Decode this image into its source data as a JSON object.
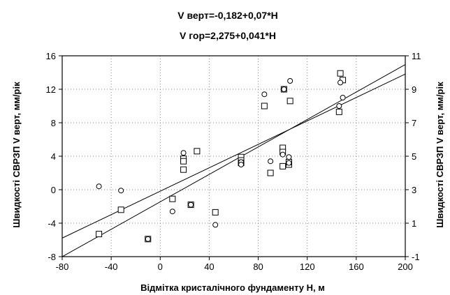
{
  "chart_data": {
    "type": "scatter",
    "title_lines": [
      "V верт=-0,182+0,07*H",
      "V гор=2,275+0,041*H"
    ],
    "xlabel": "Відмітка кристалічного фундаменту Н, м",
    "ylabel_left": "Швидкості СВРЗП V верт, мм/рік",
    "ylabel_right": "Швидкості СВРЗП V верт, мм/рік",
    "xlim": [
      -80,
      200
    ],
    "ylim_left": [
      -8,
      16
    ],
    "ylim_right": [
      -1,
      11
    ],
    "x_ticks": [
      -80,
      -40,
      0,
      40,
      80,
      120,
      160,
      200
    ],
    "y_left_ticks": [
      -8,
      -4,
      0,
      4,
      8,
      12,
      16
    ],
    "y_right_ticks": [
      -1,
      1,
      3,
      5,
      7,
      9,
      11
    ],
    "grid": true,
    "series": [
      {
        "marker": "square",
        "axis": "left",
        "points": [
          [
            -50,
            -5.3
          ],
          [
            -32,
            -2.4
          ],
          [
            -10,
            -5.9
          ],
          [
            10,
            -1.1
          ],
          [
            19,
            3.7
          ],
          [
            19,
            2.4
          ],
          [
            19,
            3.4
          ],
          [
            25,
            -1.8
          ],
          [
            30,
            4.6
          ],
          [
            45,
            -2.7
          ],
          [
            66,
            3.9
          ],
          [
            66,
            3.5
          ],
          [
            66,
            3.2
          ],
          [
            85,
            10.0
          ],
          [
            90,
            2.0
          ],
          [
            100,
            5.0
          ],
          [
            100,
            4.5
          ],
          [
            100,
            2.8
          ],
          [
            101,
            12.0
          ],
          [
            105,
            3.0
          ],
          [
            105,
            3.3
          ],
          [
            106,
            10.6
          ],
          [
            146,
            9.3
          ],
          [
            147,
            13.9
          ],
          [
            149,
            13.1
          ]
        ]
      },
      {
        "marker": "circle",
        "axis": "right",
        "points": [
          [
            -50,
            3.2
          ],
          [
            -32,
            2.95
          ],
          [
            -10,
            0.05
          ],
          [
            10,
            1.7
          ],
          [
            19,
            5.2
          ],
          [
            25,
            2.1
          ],
          [
            45,
            0.9
          ],
          [
            66,
            4.65
          ],
          [
            66,
            4.5
          ],
          [
            85,
            8.7
          ],
          [
            90,
            4.7
          ],
          [
            100,
            5.1
          ],
          [
            101,
            9.0
          ],
          [
            105,
            4.95
          ],
          [
            105,
            4.6
          ],
          [
            106,
            9.5
          ],
          [
            146,
            8.0
          ],
          [
            147,
            9.4
          ],
          [
            149,
            8.5
          ]
        ]
      }
    ],
    "regressions": [
      {
        "axis": "left",
        "intercept": -0.182,
        "slope": 0.07
      },
      {
        "axis": "right",
        "intercept": 2.275,
        "slope": 0.041
      }
    ]
  }
}
